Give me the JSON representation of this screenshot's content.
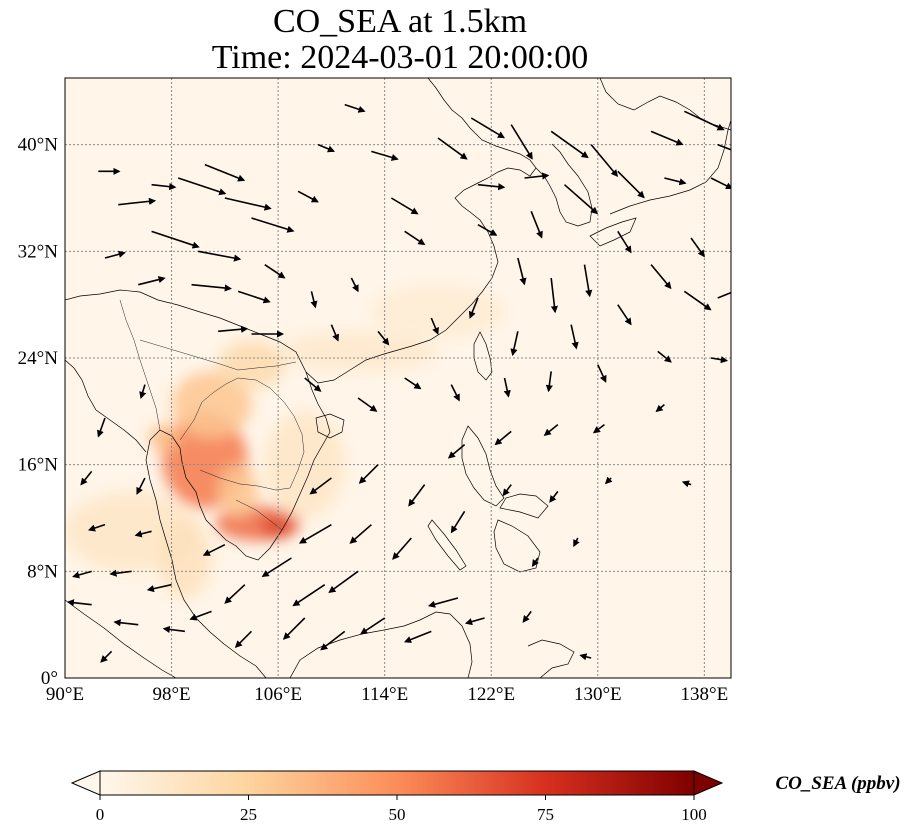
{
  "title": {
    "line1": "CO_SEA at 1.5km",
    "line2": "Time: 2024-03-01 20:00:00"
  },
  "map": {
    "extent": {
      "lon": [
        90,
        140
      ],
      "lat": [
        0,
        45
      ]
    },
    "x_ticks": [
      {
        "value": 90,
        "label": "90°E"
      },
      {
        "value": 98,
        "label": "98°E"
      },
      {
        "value": 106,
        "label": "106°E"
      },
      {
        "value": 114,
        "label": "114°E"
      },
      {
        "value": 122,
        "label": "122°E"
      },
      {
        "value": 130,
        "label": "130°E"
      },
      {
        "value": 138,
        "label": "138°E"
      }
    ],
    "y_ticks": [
      {
        "value": 0,
        "label": "0°"
      },
      {
        "value": 8,
        "label": "8°N"
      },
      {
        "value": 16,
        "label": "16°N"
      },
      {
        "value": 24,
        "label": "24°N"
      },
      {
        "value": 32,
        "label": "32°N"
      },
      {
        "value": 40,
        "label": "40°N"
      }
    ],
    "gridlines": true
  },
  "colorbar": {
    "label": "CO_SEA (ppbv)",
    "colormap": "OrRd",
    "range": [
      0,
      100
    ],
    "extend": "both",
    "ticks": [
      {
        "value": 0,
        "label": "0"
      },
      {
        "value": 25,
        "label": "25"
      },
      {
        "value": 50,
        "label": "50"
      },
      {
        "value": 75,
        "label": "75"
      },
      {
        "value": 100,
        "label": "100"
      }
    ],
    "colors": [
      "#fff7ec",
      "#fdd49e",
      "#fc8d59",
      "#d7301f",
      "#7f0000"
    ]
  },
  "plumes": [
    {
      "lon": 100.5,
      "lat": 16.3,
      "value": 55,
      "rlon": 3.2,
      "rlat": 3.6
    },
    {
      "lon": 104.5,
      "lat": 11.6,
      "value": 60,
      "rlon": 3.2,
      "rlat": 1.3
    },
    {
      "lon": 106.0,
      "lat": 11.3,
      "value": 70,
      "rlon": 1.2,
      "rlat": 0.8
    },
    {
      "lon": 101.0,
      "lat": 20.5,
      "value": 30,
      "rlon": 3.0,
      "rlat": 2.5
    },
    {
      "lon": 104.0,
      "lat": 23.5,
      "value": 20,
      "rlon": 2.5,
      "rlat": 1.8
    },
    {
      "lon": 97.5,
      "lat": 18.0,
      "value": 35,
      "rlon": 1.2,
      "rlat": 1.0
    },
    {
      "lon": 95.0,
      "lat": 11.0,
      "value": 12,
      "rlon": 5.0,
      "rlat": 3.0
    },
    {
      "lon": 99.0,
      "lat": 9.0,
      "value": 15,
      "rlon": 2.0,
      "rlat": 3.0
    },
    {
      "lon": 108.0,
      "lat": 16.0,
      "value": 12,
      "rlon": 3.0,
      "rlat": 4.0
    },
    {
      "lon": 112.0,
      "lat": 24.5,
      "value": 10,
      "rlon": 6.0,
      "rlat": 1.5
    },
    {
      "lon": 118.0,
      "lat": 27.5,
      "value": 8,
      "rlon": 5.0,
      "rlat": 2.0
    },
    {
      "lon": 103.0,
      "lat": 14.0,
      "value": 30,
      "rlon": 1.5,
      "rlat": 2.0
    }
  ],
  "wind_vectors": [
    {
      "lon": 92.5,
      "lat": 38.0,
      "u": 1.6,
      "v": 0.0
    },
    {
      "lon": 94.0,
      "lat": 35.5,
      "u": 2.8,
      "v": 0.3
    },
    {
      "lon": 96.5,
      "lat": 37.0,
      "u": 1.8,
      "v": -0.2
    },
    {
      "lon": 98.5,
      "lat": 37.5,
      "u": 3.6,
      "v": -1.2
    },
    {
      "lon": 100.5,
      "lat": 38.5,
      "u": 3.0,
      "v": -1.2
    },
    {
      "lon": 102.0,
      "lat": 36.0,
      "u": 3.5,
      "v": -0.8
    },
    {
      "lon": 104.0,
      "lat": 34.5,
      "u": 3.2,
      "v": -1.0
    },
    {
      "lon": 96.5,
      "lat": 33.5,
      "u": 3.6,
      "v": -1.2
    },
    {
      "lon": 100.0,
      "lat": 32.0,
      "u": 3.2,
      "v": -0.6
    },
    {
      "lon": 93.0,
      "lat": 31.5,
      "u": 1.5,
      "v": 0.4
    },
    {
      "lon": 95.5,
      "lat": 29.5,
      "u": 2.0,
      "v": 0.5
    },
    {
      "lon": 99.5,
      "lat": 29.5,
      "u": 3.0,
      "v": -0.3
    },
    {
      "lon": 103.0,
      "lat": 29.0,
      "u": 2.4,
      "v": -0.8
    },
    {
      "lon": 101.5,
      "lat": 26.0,
      "u": 2.2,
      "v": 0.2
    },
    {
      "lon": 104.0,
      "lat": 25.8,
      "u": 2.4,
      "v": 0.0
    },
    {
      "lon": 105.0,
      "lat": 31.0,
      "u": 1.5,
      "v": -1.0
    },
    {
      "lon": 107.5,
      "lat": 36.5,
      "u": 1.5,
      "v": -0.8
    },
    {
      "lon": 109.0,
      "lat": 40.0,
      "u": 1.2,
      "v": -0.5
    },
    {
      "lon": 111.0,
      "lat": 43.0,
      "u": 1.5,
      "v": -0.5
    },
    {
      "lon": 113.0,
      "lat": 39.5,
      "u": 2.0,
      "v": -0.6
    },
    {
      "lon": 114.5,
      "lat": 36.0,
      "u": 2.0,
      "v": -1.2
    },
    {
      "lon": 115.5,
      "lat": 33.5,
      "u": 1.5,
      "v": -1.0
    },
    {
      "lon": 111.5,
      "lat": 30.0,
      "u": 0.5,
      "v": -1.0
    },
    {
      "lon": 108.5,
      "lat": 29.0,
      "u": 0.3,
      "v": -1.2
    },
    {
      "lon": 118.0,
      "lat": 40.5,
      "u": 2.2,
      "v": -1.6
    },
    {
      "lon": 120.5,
      "lat": 42.0,
      "u": 2.5,
      "v": -1.5
    },
    {
      "lon": 123.5,
      "lat": 41.5,
      "u": 1.6,
      "v": -2.6
    },
    {
      "lon": 126.5,
      "lat": 41.0,
      "u": 2.8,
      "v": -2.0
    },
    {
      "lon": 129.5,
      "lat": 40.0,
      "u": 2.0,
      "v": -2.4
    },
    {
      "lon": 127.5,
      "lat": 37.0,
      "u": 2.5,
      "v": -2.2
    },
    {
      "lon": 131.5,
      "lat": 38.0,
      "u": 2.0,
      "v": -2.0
    },
    {
      "lon": 134.0,
      "lat": 41.0,
      "u": 2.4,
      "v": -1.0
    },
    {
      "lon": 136.5,
      "lat": 42.5,
      "u": 3.0,
      "v": -1.4
    },
    {
      "lon": 139.0,
      "lat": 40.0,
      "u": 2.6,
      "v": -1.0
    },
    {
      "lon": 135.0,
      "lat": 37.5,
      "u": 1.6,
      "v": -0.4
    },
    {
      "lon": 138.5,
      "lat": 37.5,
      "u": 1.6,
      "v": -0.8
    },
    {
      "lon": 121.0,
      "lat": 37.0,
      "u": 2.0,
      "v": -0.2
    },
    {
      "lon": 124.5,
      "lat": 37.5,
      "u": 1.8,
      "v": 0.2
    },
    {
      "lon": 125.0,
      "lat": 35.0,
      "u": 0.8,
      "v": -2.0
    },
    {
      "lon": 121.0,
      "lat": 34.0,
      "u": 1.4,
      "v": -0.8
    },
    {
      "lon": 124.0,
      "lat": 31.5,
      "u": 0.5,
      "v": -2.0
    },
    {
      "lon": 126.5,
      "lat": 30.0,
      "u": 0.3,
      "v": -2.6
    },
    {
      "lon": 129.0,
      "lat": 31.0,
      "u": 0.4,
      "v": -2.4
    },
    {
      "lon": 131.5,
      "lat": 33.5,
      "u": 1.0,
      "v": -1.6
    },
    {
      "lon": 134.0,
      "lat": 31.0,
      "u": 1.5,
      "v": -1.8
    },
    {
      "lon": 137.0,
      "lat": 33.0,
      "u": 1.0,
      "v": -1.4
    },
    {
      "lon": 139.0,
      "lat": 28.5,
      "u": 2.0,
      "v": 0.8
    },
    {
      "lon": 136.5,
      "lat": 29.0,
      "u": 2.0,
      "v": -1.4
    },
    {
      "lon": 131.5,
      "lat": 28.0,
      "u": 1.0,
      "v": -1.5
    },
    {
      "lon": 128.0,
      "lat": 26.5,
      "u": 0.4,
      "v": -1.8
    },
    {
      "lon": 124.0,
      "lat": 26.0,
      "u": -0.4,
      "v": -1.8
    },
    {
      "lon": 121.0,
      "lat": 28.5,
      "u": -0.6,
      "v": -1.5
    },
    {
      "lon": 117.5,
      "lat": 27.0,
      "u": 0.5,
      "v": -1.2
    },
    {
      "lon": 113.5,
      "lat": 26.0,
      "u": 0.8,
      "v": -1.0
    },
    {
      "lon": 110.0,
      "lat": 26.5,
      "u": 0.5,
      "v": -1.2
    },
    {
      "lon": 108.0,
      "lat": 22.5,
      "u": 1.2,
      "v": -1.0
    },
    {
      "lon": 112.0,
      "lat": 21.0,
      "u": 1.4,
      "v": -1.0
    },
    {
      "lon": 115.5,
      "lat": 22.5,
      "u": 1.2,
      "v": -0.8
    },
    {
      "lon": 119.0,
      "lat": 22.0,
      "u": 0.6,
      "v": -1.2
    },
    {
      "lon": 123.0,
      "lat": 22.5,
      "u": 0.3,
      "v": -1.4
    },
    {
      "lon": 126.5,
      "lat": 23.0,
      "u": -0.2,
      "v": -1.5
    },
    {
      "lon": 130.0,
      "lat": 23.5,
      "u": 0.6,
      "v": -1.3
    },
    {
      "lon": 134.5,
      "lat": 24.5,
      "u": 1.0,
      "v": -0.8
    },
    {
      "lon": 138.5,
      "lat": 24.0,
      "u": 1.2,
      "v": -0.2
    },
    {
      "lon": 96.0,
      "lat": 22.0,
      "u": -0.3,
      "v": -1.0
    },
    {
      "lon": 93.0,
      "lat": 19.5,
      "u": -0.5,
      "v": -1.4
    },
    {
      "lon": 92.0,
      "lat": 15.5,
      "u": -0.8,
      "v": -1.0
    },
    {
      "lon": 96.0,
      "lat": 15.0,
      "u": -0.6,
      "v": -1.2
    },
    {
      "lon": 93.0,
      "lat": 11.5,
      "u": -1.2,
      "v": -0.4
    },
    {
      "lon": 96.5,
      "lat": 11.0,
      "u": -1.2,
      "v": -0.3
    },
    {
      "lon": 92.0,
      "lat": 8.0,
      "u": -1.4,
      "v": -0.4
    },
    {
      "lon": 95.0,
      "lat": 8.0,
      "u": -1.6,
      "v": -0.2
    },
    {
      "lon": 98.0,
      "lat": 7.0,
      "u": -1.8,
      "v": -0.4
    },
    {
      "lon": 92.0,
      "lat": 5.5,
      "u": -1.8,
      "v": 0.2
    },
    {
      "lon": 95.5,
      "lat": 4.0,
      "u": -1.8,
      "v": 0.2
    },
    {
      "lon": 99.0,
      "lat": 3.5,
      "u": -1.6,
      "v": 0.2
    },
    {
      "lon": 93.5,
      "lat": 2.0,
      "u": -0.8,
      "v": -0.8
    },
    {
      "lon": 101.0,
      "lat": 5.0,
      "u": -1.6,
      "v": -0.6
    },
    {
      "lon": 103.5,
      "lat": 7.0,
      "u": -1.5,
      "v": -1.4
    },
    {
      "lon": 104.0,
      "lat": 3.5,
      "u": -1.2,
      "v": -1.2
    },
    {
      "lon": 102.0,
      "lat": 10.0,
      "u": -1.6,
      "v": -0.8
    },
    {
      "lon": 107.0,
      "lat": 9.0,
      "u": -2.2,
      "v": -1.4
    },
    {
      "lon": 109.5,
      "lat": 7.0,
      "u": -2.4,
      "v": -1.6
    },
    {
      "lon": 112.0,
      "lat": 8.0,
      "u": -2.2,
      "v": -1.6
    },
    {
      "lon": 108.0,
      "lat": 4.5,
      "u": -1.6,
      "v": -1.6
    },
    {
      "lon": 111.0,
      "lat": 3.5,
      "u": -1.8,
      "v": -1.4
    },
    {
      "lon": 114.0,
      "lat": 4.5,
      "u": -1.8,
      "v": -1.2
    },
    {
      "lon": 117.5,
      "lat": 3.5,
      "u": -2.0,
      "v": -0.8
    },
    {
      "lon": 119.5,
      "lat": 6.0,
      "u": -2.2,
      "v": -0.6
    },
    {
      "lon": 121.5,
      "lat": 4.5,
      "u": -1.4,
      "v": -0.4
    },
    {
      "lon": 110.0,
      "lat": 11.5,
      "u": -2.4,
      "v": -1.4
    },
    {
      "lon": 113.0,
      "lat": 11.5,
      "u": -1.6,
      "v": -1.4
    },
    {
      "lon": 116.0,
      "lat": 10.5,
      "u": -1.4,
      "v": -1.6
    },
    {
      "lon": 110.0,
      "lat": 15.0,
      "u": -1.6,
      "v": -1.2
    },
    {
      "lon": 113.5,
      "lat": 16.0,
      "u": -1.4,
      "v": -1.4
    },
    {
      "lon": 117.0,
      "lat": 14.5,
      "u": -1.2,
      "v": -1.6
    },
    {
      "lon": 120.0,
      "lat": 12.5,
      "u": -1.0,
      "v": -1.6
    },
    {
      "lon": 120.0,
      "lat": 17.5,
      "u": -1.2,
      "v": -1.0
    },
    {
      "lon": 123.5,
      "lat": 18.5,
      "u": -1.2,
      "v": -1.0
    },
    {
      "lon": 127.0,
      "lat": 19.0,
      "u": -1.0,
      "v": -0.8
    },
    {
      "lon": 130.5,
      "lat": 19.0,
      "u": -0.8,
      "v": -0.6
    },
    {
      "lon": 123.5,
      "lat": 14.5,
      "u": -0.6,
      "v": -0.8
    },
    {
      "lon": 127.0,
      "lat": 14.0,
      "u": -0.6,
      "v": -0.8
    },
    {
      "lon": 131.0,
      "lat": 15.0,
      "u": -0.4,
      "v": -0.4
    },
    {
      "lon": 135.0,
      "lat": 20.5,
      "u": -0.6,
      "v": -0.5
    },
    {
      "lon": 125.5,
      "lat": 9.0,
      "u": -0.4,
      "v": -0.6
    },
    {
      "lon": 128.5,
      "lat": 10.5,
      "u": -0.3,
      "v": -0.6
    },
    {
      "lon": 125.0,
      "lat": 5.0,
      "u": -0.6,
      "v": -0.8
    },
    {
      "lon": 129.5,
      "lat": 1.5,
      "u": -0.8,
      "v": 0.2
    },
    {
      "lon": 137.0,
      "lat": 14.5,
      "u": -0.6,
      "v": 0.2
    }
  ]
}
